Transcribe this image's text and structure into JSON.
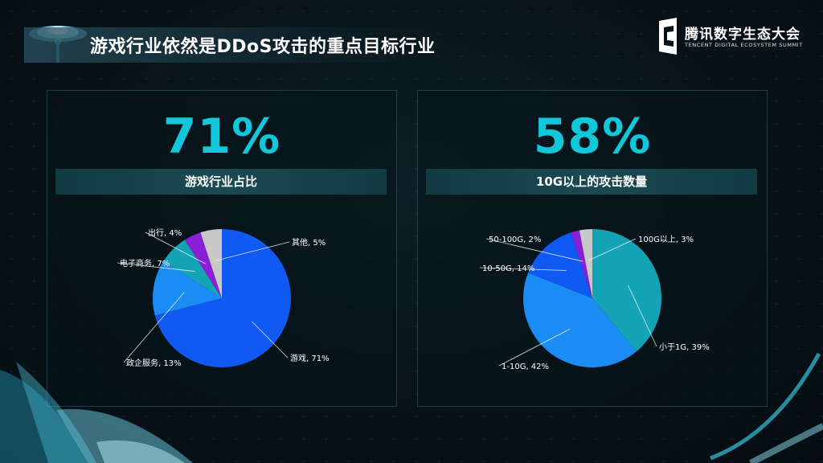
{
  "slide": {
    "title": "游戏行业依然是DDoS攻击的重点目标行业"
  },
  "logo": {
    "cn": "腾讯数字生态大会",
    "en": "TENCENT DIGITAL ECOSYSTEM SUMMIT"
  },
  "colors": {
    "accent": "#11c7d9",
    "game": "#1059f2",
    "gov": "#1c8cf5",
    "ecommerce": "#13a3b5",
    "travel": "#8a1fd6",
    "other": "#c8c8c8"
  },
  "chart_data": [
    {
      "type": "pie",
      "headline_value": "71%",
      "title": "游戏行业占比",
      "slices": [
        {
          "label": "游戏",
          "value": 71,
          "text": "游戏, 71%",
          "color": "#1059f2"
        },
        {
          "label": "政企服务",
          "value": 13,
          "text": "政企服务, 13%",
          "color": "#1c8cf5"
        },
        {
          "label": "电子商务",
          "value": 7,
          "text": "电子商务, 7%",
          "color": "#13a3b5"
        },
        {
          "label": "出行",
          "value": 4,
          "text": "出行, 4%",
          "color": "#8a1fd6"
        },
        {
          "label": "其他",
          "value": 5,
          "text": "其他, 5%",
          "color": "#c8c8c8"
        }
      ]
    },
    {
      "type": "pie",
      "headline_value": "58%",
      "title": "10G以上的攻击数量",
      "slices": [
        {
          "label": "小于1G",
          "value": 39,
          "text": "小于1G, 39%",
          "color": "#13a3b5"
        },
        {
          "label": "1-10G",
          "value": 42,
          "text": "1-10G, 42%",
          "color": "#1c8cf5"
        },
        {
          "label": "10-50G",
          "value": 14,
          "text": "10-50G, 14%",
          "color": "#1059f2"
        },
        {
          "label": "50-100G",
          "value": 2,
          "text": "50-100G, 2%",
          "color": "#8a1fd6"
        },
        {
          "label": "100G以上",
          "value": 3,
          "text": "100G以上, 3%",
          "color": "#c8c8c8"
        }
      ]
    }
  ]
}
